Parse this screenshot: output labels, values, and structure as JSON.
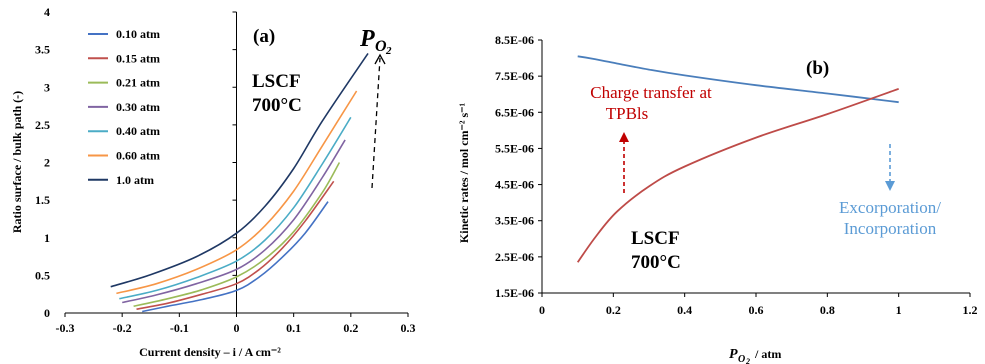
{
  "chart_data": [
    {
      "type": "line",
      "panel_label": "(a)",
      "xlabel": "Current density – i / A cm⁻²",
      "ylabel": "Ratio surface / bulk path (-)",
      "xlim": [
        -0.3,
        0.3
      ],
      "ylim": [
        0,
        4
      ],
      "x_ticks": [
        "-0.3",
        "-0.2",
        "-0.1",
        "0",
        "0.1",
        "0.2",
        "0.3"
      ],
      "y_ticks": [
        "0",
        "0.5",
        "1",
        "1.5",
        "2",
        "2.5",
        "3",
        "3.5",
        "4"
      ],
      "legend_placement": "top-left",
      "series": [
        {
          "name": "0.10 atm",
          "color": "#4472C4",
          "x": [
            -0.165,
            -0.12,
            -0.06,
            0,
            0.04,
            0.08,
            0.12,
            0.16
          ],
          "y": [
            0.02,
            0.09,
            0.18,
            0.3,
            0.48,
            0.74,
            1.06,
            1.48
          ]
        },
        {
          "name": "0.15 atm",
          "color": "#C0504D",
          "x": [
            -0.175,
            -0.12,
            -0.06,
            0,
            0.04,
            0.08,
            0.12,
            0.17
          ],
          "y": [
            0.05,
            0.13,
            0.25,
            0.39,
            0.58,
            0.86,
            1.22,
            1.75
          ]
        },
        {
          "name": "0.21 atm",
          "color": "#9BBB59",
          "x": [
            -0.18,
            -0.12,
            -0.06,
            0,
            0.05,
            0.1,
            0.15,
            0.18
          ],
          "y": [
            0.09,
            0.19,
            0.31,
            0.48,
            0.72,
            1.08,
            1.6,
            2.0
          ]
        },
        {
          "name": "0.30 atm",
          "color": "#8064A2",
          "x": [
            -0.2,
            -0.14,
            -0.07,
            0,
            0.05,
            0.1,
            0.15,
            0.19
          ],
          "y": [
            0.14,
            0.24,
            0.39,
            0.58,
            0.84,
            1.24,
            1.8,
            2.3
          ]
        },
        {
          "name": "0.40 atm",
          "color": "#4BACC6",
          "x": [
            -0.205,
            -0.14,
            -0.07,
            0,
            0.05,
            0.1,
            0.15,
            0.2
          ],
          "y": [
            0.19,
            0.3,
            0.47,
            0.69,
            0.97,
            1.4,
            1.98,
            2.6
          ]
        },
        {
          "name": "0.60 atm",
          "color": "#F79646",
          "x": [
            -0.21,
            -0.14,
            -0.07,
            0,
            0.05,
            0.1,
            0.15,
            0.21
          ],
          "y": [
            0.26,
            0.39,
            0.58,
            0.84,
            1.16,
            1.62,
            2.22,
            2.95
          ]
        },
        {
          "name": "1.0 atm",
          "color": "#1F3864",
          "x": [
            -0.22,
            -0.15,
            -0.07,
            0,
            0.05,
            0.1,
            0.15,
            0.23
          ],
          "y": [
            0.35,
            0.51,
            0.75,
            1.06,
            1.42,
            1.92,
            2.55,
            3.45
          ]
        }
      ],
      "annotations": {
        "material": "LSCF",
        "temperature": "700°C",
        "arrow_label_main": "P",
        "arrow_label_sub": "O",
        "arrow_label_subsub": "2"
      }
    },
    {
      "type": "line",
      "panel_label": "(b)",
      "xlabel_main": "P",
      "xlabel_sub": "O",
      "xlabel_subsub": "2",
      "xlabel_rest": " / atm",
      "ylabel": "Kinetic rates / mol cm⁻² s⁻¹",
      "xlim": [
        0,
        1.2
      ],
      "ylim": [
        1.5e-06,
        8.5e-06
      ],
      "x_ticks": [
        "0",
        "0.2",
        "0.4",
        "0.6",
        "0.8",
        "1",
        "1.2"
      ],
      "y_ticks": [
        "1.5E-06",
        "2.5E-06",
        "3.5E-06",
        "4.5E-06",
        "5.5E-06",
        "6.5E-06",
        "7.5E-06",
        "8.5E-06"
      ],
      "series": [
        {
          "color": "#4A7EBB",
          "x": [
            0.1,
            0.15,
            0.21,
            0.3,
            0.4,
            0.6,
            0.8,
            1.0
          ],
          "y": [
            8.05e-06,
            7.97e-06,
            7.85e-06,
            7.68e-06,
            7.52e-06,
            7.25e-06,
            7.02e-06,
            6.78e-06
          ]
        },
        {
          "color": "#BE4B48",
          "x": [
            0.1,
            0.15,
            0.21,
            0.3,
            0.4,
            0.6,
            0.8,
            1.0
          ],
          "y": [
            2.35e-06,
            3.05e-06,
            3.75e-06,
            4.45e-06,
            5e-06,
            5.8e-06,
            6.45e-06,
            7.15e-06
          ]
        }
      ],
      "annotations": {
        "charge_transfer_line1": "Charge transfer at",
        "charge_transfer_line2": "TPBls",
        "excorporation_line1": "Excorporation/",
        "excorporation_line2": "Incorporation",
        "material": "LSCF",
        "temperature": "700°C",
        "charge_transfer_color": "#C00000",
        "excorporation_color": "#5B9BD5"
      }
    }
  ]
}
